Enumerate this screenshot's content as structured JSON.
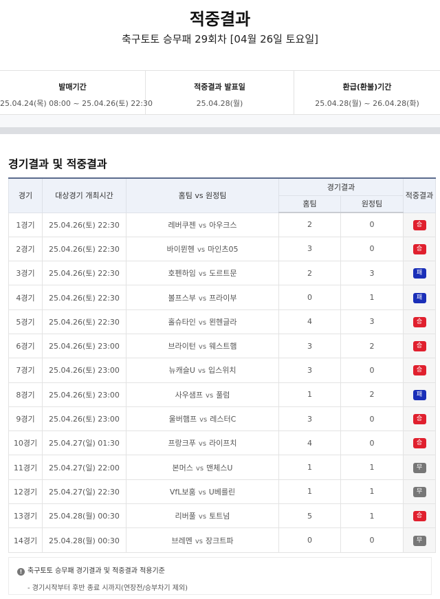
{
  "header": {
    "title": "적중결과",
    "subtitle": "축구토토 승무패 29회차 [04월 26일 토요일]"
  },
  "info": [
    {
      "label": "발매기간",
      "value": "25.04.24(목) 08:00 ~ 25.04.26(토) 22:30"
    },
    {
      "label": "적중결과 발표일",
      "value": "25.04.28(월)"
    },
    {
      "label": "환급(환불)기간",
      "value": "25.04.28(월) ~ 26.04.28(화)"
    }
  ],
  "section_title": "경기결과 및 적중결과",
  "table": {
    "headers": {
      "game": "경기",
      "time": "대상경기 개최시간",
      "teams": "홈팀 vs 원정팀",
      "result_group": "경기결과",
      "home": "홈팀",
      "away": "원정팀",
      "hit": "적중결과"
    },
    "vs": "vs",
    "rows": [
      {
        "game": "1경기",
        "time": "25.04.26(토) 22:30",
        "home_team": "레버쿠젠",
        "away_team": "아우크스",
        "home_score": "2",
        "away_score": "0",
        "result": "승",
        "type": "win"
      },
      {
        "game": "2경기",
        "time": "25.04.26(토) 22:30",
        "home_team": "바이뮌헨",
        "away_team": "마인츠05",
        "home_score": "3",
        "away_score": "0",
        "result": "승",
        "type": "win"
      },
      {
        "game": "3경기",
        "time": "25.04.26(토) 22:30",
        "home_team": "호펜하임",
        "away_team": "도르트문",
        "home_score": "2",
        "away_score": "3",
        "result": "패",
        "type": "lose"
      },
      {
        "game": "4경기",
        "time": "25.04.26(토) 22:30",
        "home_team": "볼프스부",
        "away_team": "프라이부",
        "home_score": "0",
        "away_score": "1",
        "result": "패",
        "type": "lose"
      },
      {
        "game": "5경기",
        "time": "25.04.26(토) 22:30",
        "home_team": "홀슈타인",
        "away_team": "묀헨글라",
        "home_score": "4",
        "away_score": "3",
        "result": "승",
        "type": "win"
      },
      {
        "game": "6경기",
        "time": "25.04.26(토) 23:00",
        "home_team": "브라이턴",
        "away_team": "웨스트햄",
        "home_score": "3",
        "away_score": "2",
        "result": "승",
        "type": "win"
      },
      {
        "game": "7경기",
        "time": "25.04.26(토) 23:00",
        "home_team": "뉴캐슬U",
        "away_team": "입스위치",
        "home_score": "3",
        "away_score": "0",
        "result": "승",
        "type": "win"
      },
      {
        "game": "8경기",
        "time": "25.04.26(토) 23:00",
        "home_team": "사우샘프",
        "away_team": "풀럼",
        "home_score": "1",
        "away_score": "2",
        "result": "패",
        "type": "lose"
      },
      {
        "game": "9경기",
        "time": "25.04.26(토) 23:00",
        "home_team": "울버햄프",
        "away_team": "레스터C",
        "home_score": "3",
        "away_score": "0",
        "result": "승",
        "type": "win"
      },
      {
        "game": "10경기",
        "time": "25.04.27(일) 01:30",
        "home_team": "프랑크푸",
        "away_team": "라이프치",
        "home_score": "4",
        "away_score": "0",
        "result": "승",
        "type": "win"
      },
      {
        "game": "11경기",
        "time": "25.04.27(일) 22:00",
        "home_team": "본머스",
        "away_team": "맨체스U",
        "home_score": "1",
        "away_score": "1",
        "result": "무",
        "type": "draw"
      },
      {
        "game": "12경기",
        "time": "25.04.27(일) 22:30",
        "home_team": "VfL보훔",
        "away_team": "U베를린",
        "home_score": "1",
        "away_score": "1",
        "result": "무",
        "type": "draw"
      },
      {
        "game": "13경기",
        "time": "25.04.28(월) 00:30",
        "home_team": "리버풀",
        "away_team": "토트넘",
        "home_score": "5",
        "away_score": "1",
        "result": "승",
        "type": "win"
      },
      {
        "game": "14경기",
        "time": "25.04.28(월) 00:30",
        "home_team": "브레멘",
        "away_team": "장크트파",
        "home_score": "0",
        "away_score": "0",
        "result": "무",
        "type": "draw"
      }
    ]
  },
  "note": {
    "icon": "exclamation-icon",
    "icon_glyph": "!",
    "title": "축구토토 승무패 경기결과 및 적중결과 적용기준",
    "text": "- 경기시작부터 후반 종료 시까지(연장전/승부차기 제외)"
  },
  "colors": {
    "win": "#e0202e",
    "lose": "#1a2fb8",
    "draw": "#777777"
  }
}
